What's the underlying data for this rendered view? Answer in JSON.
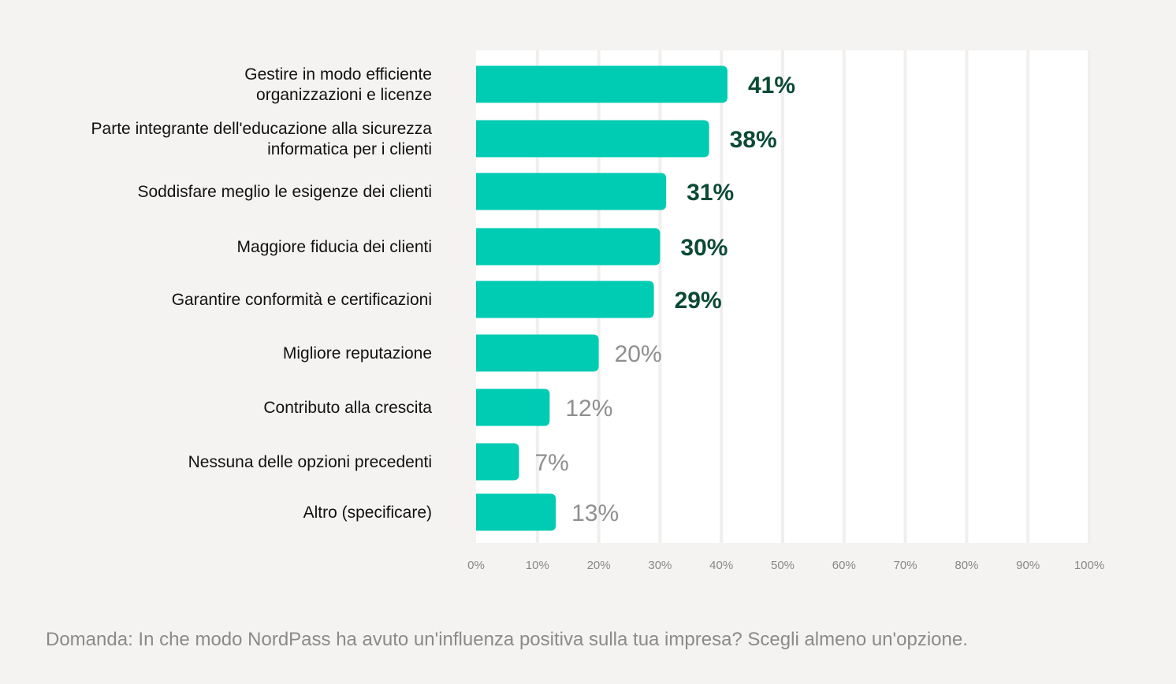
{
  "chart_data": {
    "type": "bar",
    "orientation": "horizontal",
    "categories": [
      [
        "Gestire in modo efficiente",
        "organizzazioni e licenze"
      ],
      [
        "Parte integrante dell'educazione alla sicurezza",
        "informatica per i clienti"
      ],
      [
        "Soddisfare meglio le esigenze dei clienti"
      ],
      [
        "Maggiore fiducia dei clienti"
      ],
      [
        "Garantire conformità e certificazioni"
      ],
      [
        "Migliore reputazione"
      ],
      [
        "Contributo alla crescita"
      ],
      [
        "Nessuna delle opzioni precedenti"
      ],
      [
        "Altro (specificare)"
      ]
    ],
    "values": [
      41,
      38,
      31,
      30,
      29,
      20,
      12,
      7,
      13
    ],
    "data_labels": [
      "41%",
      "38%",
      "31%",
      "30%",
      "29%",
      "20%",
      "12%",
      "7%",
      "13%"
    ],
    "xlim": [
      0,
      100
    ],
    "x_ticks": [
      "0%",
      "10%",
      "20%",
      "30%",
      "40%",
      "50%",
      "60%",
      "70%",
      "80%",
      "90%",
      "100%"
    ],
    "grid": true,
    "title": "",
    "xlabel": "",
    "ylabel": ""
  },
  "colors": {
    "background": "#f5f3f1",
    "plot_background": "#ffffff",
    "gridline": "#f1efed",
    "bar": "#00cbb3",
    "label_highlight": "#0b4a35",
    "label_muted": "#8f8f8f"
  },
  "highlighted_count": 5,
  "footer": {
    "question": "Domanda: In che modo NordPass ha avuto un'influenza positiva sulla tua impresa? Scegli almeno un'opzione."
  }
}
